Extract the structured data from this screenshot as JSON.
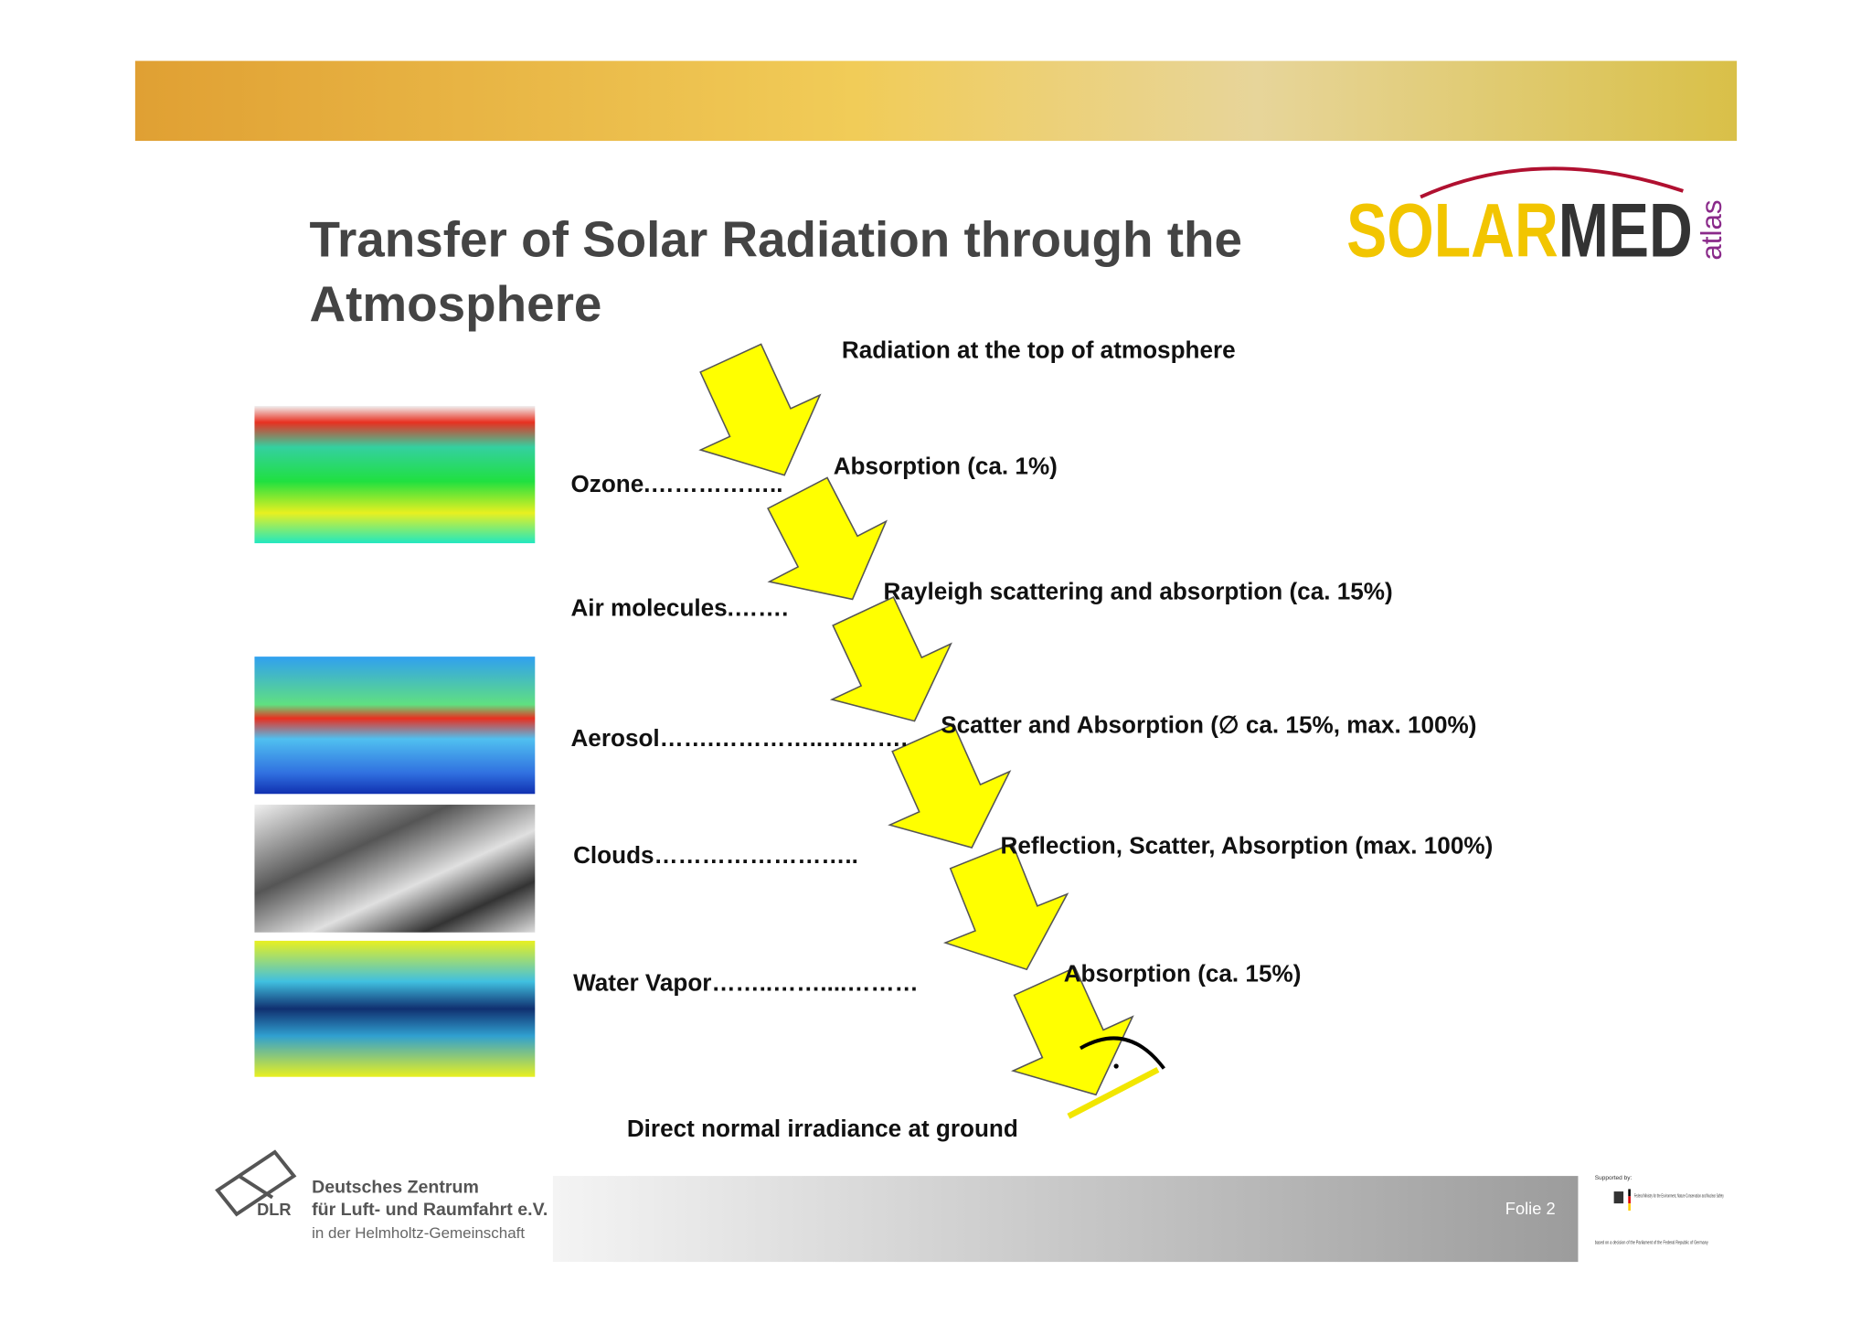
{
  "header": {
    "title_line1": "Transfer of Solar Radiation through the",
    "title_line2": "Atmosphere",
    "logo_main_1": "SOLAR",
    "logo_main_2": "MED",
    "logo_sub": "atlas"
  },
  "diagram": {
    "top_label": "Radiation at the top of atmosphere",
    "layers": [
      {
        "label": "Ozone.……………..",
        "effect": "Absorption (ca. 1%)"
      },
      {
        "label": "Air molecules.…….",
        "effect": "Rayleigh scattering and absorption (ca. 15%)"
      },
      {
        "label": "Aerosol…….…………..….…….",
        "effect": "Scatter and Absorption (∅ ca. 15%, max. 100%)"
      },
      {
        "label": "Clouds……………………..",
        "effect": "Reflection, Scatter, Absorption (max. 100%)"
      },
      {
        "label": "Water Vapor……..……....………",
        "effect": "Absorption (ca. 15%)"
      }
    ],
    "bottom_label": "Direct normal irradiance at ground"
  },
  "footer": {
    "org_line1": "Deutsches Zentrum",
    "org_line2": "für Luft- und Raumfahrt e.V.",
    "org_line3": "in der Helmholtz-Gemeinschaft",
    "org_abbr": "DLR",
    "slide": "Folie 2",
    "supported_by": "Supported by:",
    "ministry": "Federal Ministry for the Environment, Nature Conservation and Nuclear Safety",
    "decision": "based on a decision of the Parliament of the Federal Republic of Germany"
  }
}
